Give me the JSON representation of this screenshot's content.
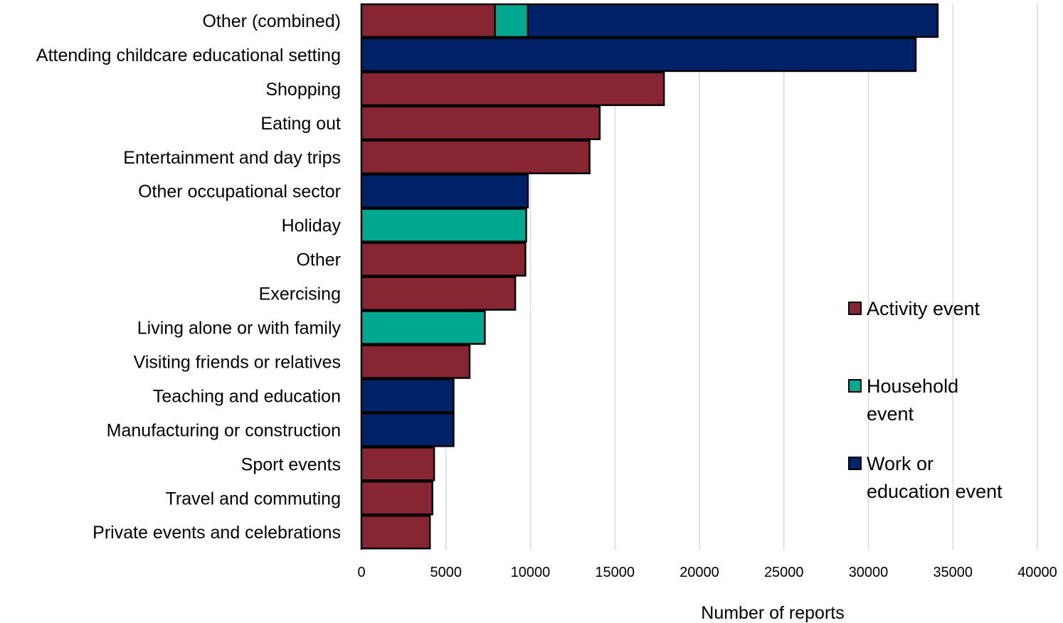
{
  "chart_data": {
    "type": "bar",
    "orientation": "horizontal",
    "stacked": true,
    "categories": [
      "Other (combined)",
      "Attending childcare educational setting",
      "Shopping",
      "Eating out",
      "Entertainment and day trips",
      "Other occupational sector",
      "Holiday",
      "Other",
      "Exercising",
      "Living alone or with family",
      "Visiting friends or relatives",
      "Teaching and education",
      "Manufacturing or construction",
      "Sport events",
      "Travel and commuting",
      "Private events and celebrations"
    ],
    "series": [
      {
        "name": "Activity event",
        "color": "#862633",
        "values": [
          7900,
          0,
          17900,
          14100,
          13500,
          0,
          0,
          9700,
          9100,
          0,
          6400,
          0,
          0,
          4300,
          4200,
          4050
        ]
      },
      {
        "name": "Household event",
        "color": "#00A88F",
        "values": [
          1950,
          0,
          0,
          0,
          0,
          0,
          9750,
          0,
          0,
          7300,
          0,
          0,
          0,
          0,
          0,
          0
        ]
      },
      {
        "name": "Work or education event",
        "color": "#012169",
        "values": [
          24250,
          32800,
          0,
          0,
          0,
          9850,
          0,
          0,
          0,
          0,
          0,
          5450,
          5450,
          0,
          0,
          0
        ]
      }
    ],
    "legend_lines": [
      [
        "Activity event"
      ],
      [
        "Household",
        "event"
      ],
      [
        "Work or",
        "education event"
      ]
    ],
    "xlim": [
      0,
      40000
    ],
    "xticks": [
      0,
      5000,
      10000,
      15000,
      20000,
      25000,
      30000,
      35000,
      40000
    ],
    "xlabel": "Number of reports",
    "ylabel": "",
    "title": "",
    "grid": "vertical",
    "legend_position": "right"
  }
}
